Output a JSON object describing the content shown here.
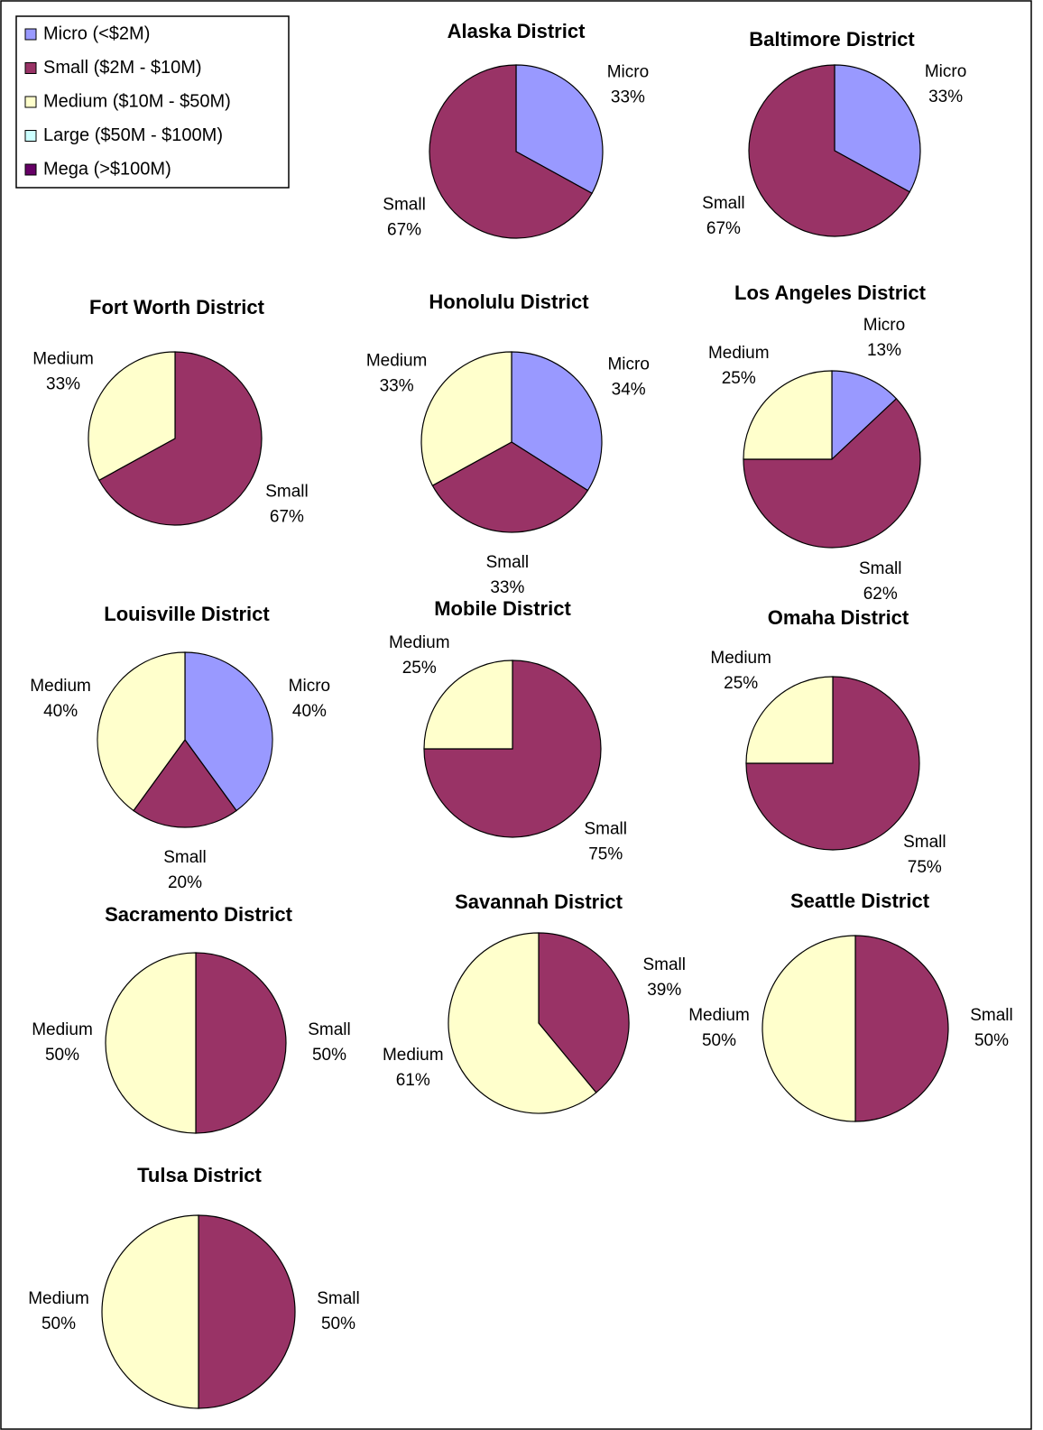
{
  "legend": [
    {
      "name": "Micro (<$2M)",
      "color": "#9999ff"
    },
    {
      "name": "Small ($2M - $10M)",
      "color": "#993366"
    },
    {
      "name": "Medium ($10M - $50M)",
      "color": "#ffffcc"
    },
    {
      "name": "Large ($50M - $100M)",
      "color": "#ccffff"
    },
    {
      "name": "Mega (>$100M)",
      "color": "#660066"
    }
  ],
  "chart_data": [
    {
      "type": "pie",
      "title": "Alaska District",
      "categories": [
        "Micro",
        "Small"
      ],
      "values": [
        33,
        67
      ],
      "value_labels": [
        "33%",
        "67%"
      ],
      "colors": [
        "#9999ff",
        "#993366"
      ]
    },
    {
      "type": "pie",
      "title": "Baltimore District",
      "categories": [
        "Micro",
        "Small"
      ],
      "values": [
        33,
        67
      ],
      "value_labels": [
        "33%",
        "67%"
      ],
      "colors": [
        "#9999ff",
        "#993366"
      ]
    },
    {
      "type": "pie",
      "title": "Fort Worth District",
      "categories": [
        "Small",
        "Medium"
      ],
      "values": [
        67,
        33
      ],
      "value_labels": [
        "67%",
        "33%"
      ],
      "colors": [
        "#993366",
        "#ffffcc"
      ]
    },
    {
      "type": "pie",
      "title": "Honolulu District",
      "categories": [
        "Micro",
        "Small",
        "Medium"
      ],
      "values": [
        34,
        33,
        33
      ],
      "value_labels": [
        "34%",
        "33%",
        "33%"
      ],
      "colors": [
        "#9999ff",
        "#993366",
        "#ffffcc"
      ]
    },
    {
      "type": "pie",
      "title": "Los Angeles District",
      "categories": [
        "Micro",
        "Small",
        "Medium"
      ],
      "values": [
        13,
        62,
        25
      ],
      "value_labels": [
        "13%",
        "62%",
        "25%"
      ],
      "colors": [
        "#9999ff",
        "#993366",
        "#ffffcc"
      ]
    },
    {
      "type": "pie",
      "title": "Louisville District",
      "categories": [
        "Micro",
        "Small",
        "Medium"
      ],
      "values": [
        40,
        20,
        40
      ],
      "value_labels": [
        "40%",
        "20%",
        "40%"
      ],
      "colors": [
        "#9999ff",
        "#993366",
        "#ffffcc"
      ]
    },
    {
      "type": "pie",
      "title": "Mobile District",
      "categories": [
        "Small",
        "Medium"
      ],
      "values": [
        75,
        25
      ],
      "value_labels": [
        "75%",
        "25%"
      ],
      "colors": [
        "#993366",
        "#ffffcc"
      ]
    },
    {
      "type": "pie",
      "title": "Omaha District",
      "categories": [
        "Small",
        "Medium"
      ],
      "values": [
        75,
        25
      ],
      "value_labels": [
        "75%",
        "25%"
      ],
      "colors": [
        "#993366",
        "#ffffcc"
      ]
    },
    {
      "type": "pie",
      "title": "Sacramento District",
      "categories": [
        "Small",
        "Medium"
      ],
      "values": [
        50,
        50
      ],
      "value_labels": [
        "50%",
        "50%"
      ],
      "colors": [
        "#993366",
        "#ffffcc"
      ]
    },
    {
      "type": "pie",
      "title": "Savannah District",
      "categories": [
        "Small",
        "Medium"
      ],
      "values": [
        39,
        61
      ],
      "value_labels": [
        "39%",
        "61%"
      ],
      "colors": [
        "#993366",
        "#ffffcc"
      ]
    },
    {
      "type": "pie",
      "title": "Seattle District",
      "categories": [
        "Small",
        "Medium"
      ],
      "values": [
        50,
        50
      ],
      "value_labels": [
        "50%",
        "50%"
      ],
      "colors": [
        "#993366",
        "#ffffcc"
      ]
    },
    {
      "type": "pie",
      "title": "Tulsa District",
      "categories": [
        "Small",
        "Medium"
      ],
      "values": [
        50,
        50
      ],
      "value_labels": [
        "50%",
        "50%"
      ],
      "colors": [
        "#993366",
        "#ffffcc"
      ]
    }
  ]
}
